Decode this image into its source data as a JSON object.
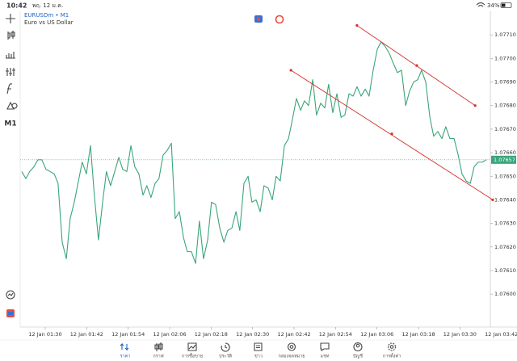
{
  "status_bar": {
    "time": "10:42",
    "date": "พฤ. 12 ม.ค.",
    "battery": "34%"
  },
  "toolbar": {
    "timeframe": "M1"
  },
  "chart_data": {
    "type": "line",
    "title": "EURUSDm • M1",
    "subtitle": "Euro vs US Dollar",
    "x": [
      83.2,
      84.4,
      85.5,
      86.7,
      87.9,
      89.0,
      90.2,
      91.4,
      92.6,
      93.7,
      94.9,
      96.1,
      97.2,
      98.4,
      99.6,
      100.7,
      101.9,
      103.1,
      104.2,
      105.4,
      106.6,
      107.7,
      108.9,
      110.1,
      111.3,
      112.4,
      113.6,
      114.8,
      115.9,
      117.1,
      118.3,
      119.4,
      120.6,
      121.8,
      122.9,
      124.1,
      125.3,
      126.5,
      127.6,
      128.8,
      130.0,
      131.1,
      132.3,
      133.5,
      134.6,
      135.8,
      137.0,
      138.1,
      139.3,
      140.5,
      141.7,
      142.8,
      144.0,
      145.2,
      146.3,
      147.5,
      148.7,
      149.8,
      151.0,
      152.2,
      153.3,
      154.5,
      155.7,
      156.8,
      158.0,
      159.2,
      160.4,
      161.5,
      162.7,
      163.9,
      165.0,
      166.2,
      167.4,
      168.5,
      169.7,
      170.9,
      172.0,
      173.2,
      174.4,
      175.6,
      176.7,
      177.9,
      179.1,
      180.2,
      181.4,
      182.6,
      183.7,
      184.9,
      186.1,
      187.2,
      188.4,
      189.6,
      190.7,
      191.9,
      193.1,
      194.3,
      195.4,
      196.6,
      197.8,
      198.9,
      200.1,
      201.3,
      202.4,
      203.6,
      204.8,
      205.9,
      207.1,
      208.3,
      209.5,
      210.6,
      211.8,
      213.0,
      214.1,
      215.3,
      216.5,
      217.6
    ],
    "series": [
      {
        "name": "EURUSDm",
        "color": "#3aa57a",
        "values": [
          1.07652,
          1.07649,
          1.07652,
          1.07654,
          1.07657,
          1.07657,
          1.07653,
          1.07652,
          1.07651,
          1.07647,
          1.07622,
          1.07615,
          1.07632,
          1.07639,
          1.07648,
          1.07656,
          1.07651,
          1.07663,
          1.07642,
          1.07623,
          1.07639,
          1.07652,
          1.07646,
          1.07652,
          1.07658,
          1.07653,
          1.07652,
          1.07663,
          1.07654,
          1.07651,
          1.07642,
          1.07646,
          1.07641,
          1.07647,
          1.07649,
          1.07659,
          1.07661,
          1.07664,
          1.07632,
          1.07635,
          1.07624,
          1.07618,
          1.07618,
          1.07613,
          1.07631,
          1.07615,
          1.07623,
          1.07639,
          1.07638,
          1.07628,
          1.07622,
          1.07627,
          1.07628,
          1.07635,
          1.07627,
          1.07647,
          1.0765,
          1.07639,
          1.0764,
          1.07635,
          1.07646,
          1.07645,
          1.0764,
          1.0765,
          1.07648,
          1.07663,
          1.07666,
          1.07674,
          1.07683,
          1.07678,
          1.07682,
          1.0768,
          1.07691,
          1.07676,
          1.07681,
          1.07679,
          1.07689,
          1.07677,
          1.07685,
          1.07675,
          1.07676,
          1.07685,
          1.07684,
          1.07688,
          1.07684,
          1.07687,
          1.07684,
          1.07695,
          1.07704,
          1.07707,
          1.07705,
          1.07702,
          1.07698,
          1.07694,
          1.07695,
          1.0768,
          1.07686,
          1.0769,
          1.07691,
          1.07695,
          1.0769,
          1.07675,
          1.07667,
          1.07669,
          1.07666,
          1.07671,
          1.07666,
          1.07666,
          1.07659,
          1.07651,
          1.07648,
          1.07647,
          1.07654,
          1.07656,
          1.07656,
          1.07657
        ]
      }
    ],
    "current_price": 1.07657,
    "current_price_color": "#3aa57a",
    "trendlines": [
      {
        "color": "#d9312b",
        "x": [
          161.1,
          190.3,
          219.5
        ],
        "y": [
          1.07695,
          1.07668,
          1.0764
        ]
      },
      {
        "color": "#d9312b",
        "x": [
          180.2,
          197.5,
          214.4
        ],
        "y": [
          1.07714,
          1.07697,
          1.0768
        ]
      }
    ],
    "xlim": [
      82.75,
      218.8
    ],
    "ylim": [
      1.07586,
      1.0772
    ],
    "xticks": [
      {
        "value": 90,
        "label": "12 Jan 01:30"
      },
      {
        "value": 102,
        "label": "12 Jan 01:42"
      },
      {
        "value": 114,
        "label": "12 Jan 01:54"
      },
      {
        "value": 126,
        "label": "12 Jan 02:06"
      },
      {
        "value": 138,
        "label": "12 Jan 02:18"
      },
      {
        "value": 150,
        "label": "12 Jan 02:30"
      },
      {
        "value": 162,
        "label": "12 Jan 02:42"
      },
      {
        "value": 174,
        "label": "12 Jan 02:54"
      },
      {
        "value": 186,
        "label": "12 Jan 03:06"
      },
      {
        "value": 198,
        "label": "12 Jan 03:18"
      },
      {
        "value": 210,
        "label": "12 Jan 03:30"
      },
      {
        "value": 222,
        "label": "12 Jan 03:42"
      }
    ],
    "yticks": [
      {
        "value": 1.0771,
        "label": "1.07710"
      },
      {
        "value": 1.077,
        "label": "1.07700"
      },
      {
        "value": 1.0769,
        "label": "1.07690"
      },
      {
        "value": 1.0768,
        "label": "1.07680"
      },
      {
        "value": 1.0767,
        "label": "1.07670"
      },
      {
        "value": 1.0766,
        "label": "1.07660"
      },
      {
        "value": 1.0765,
        "label": "1.07650"
      },
      {
        "value": 1.0764,
        "label": "1.07640"
      },
      {
        "value": 1.0763,
        "label": "1.07630"
      },
      {
        "value": 1.0762,
        "label": "1.07620"
      },
      {
        "value": 1.0761,
        "label": "1.07610"
      },
      {
        "value": 1.076,
        "label": "1.07600"
      }
    ]
  },
  "tabs": [
    {
      "label": "ราคา",
      "active": true
    },
    {
      "label": "กราฟ",
      "active": false
    },
    {
      "label": "การซื้อขาย",
      "active": false
    },
    {
      "label": "ประวัติ",
      "active": false
    },
    {
      "label": "ข่าว",
      "active": false
    },
    {
      "label": "กล่องจดหมาย",
      "active": false
    },
    {
      "label": "แชท",
      "active": false
    },
    {
      "label": "บัญชี",
      "active": false
    },
    {
      "label": "การตั้งค่า",
      "active": false
    }
  ]
}
